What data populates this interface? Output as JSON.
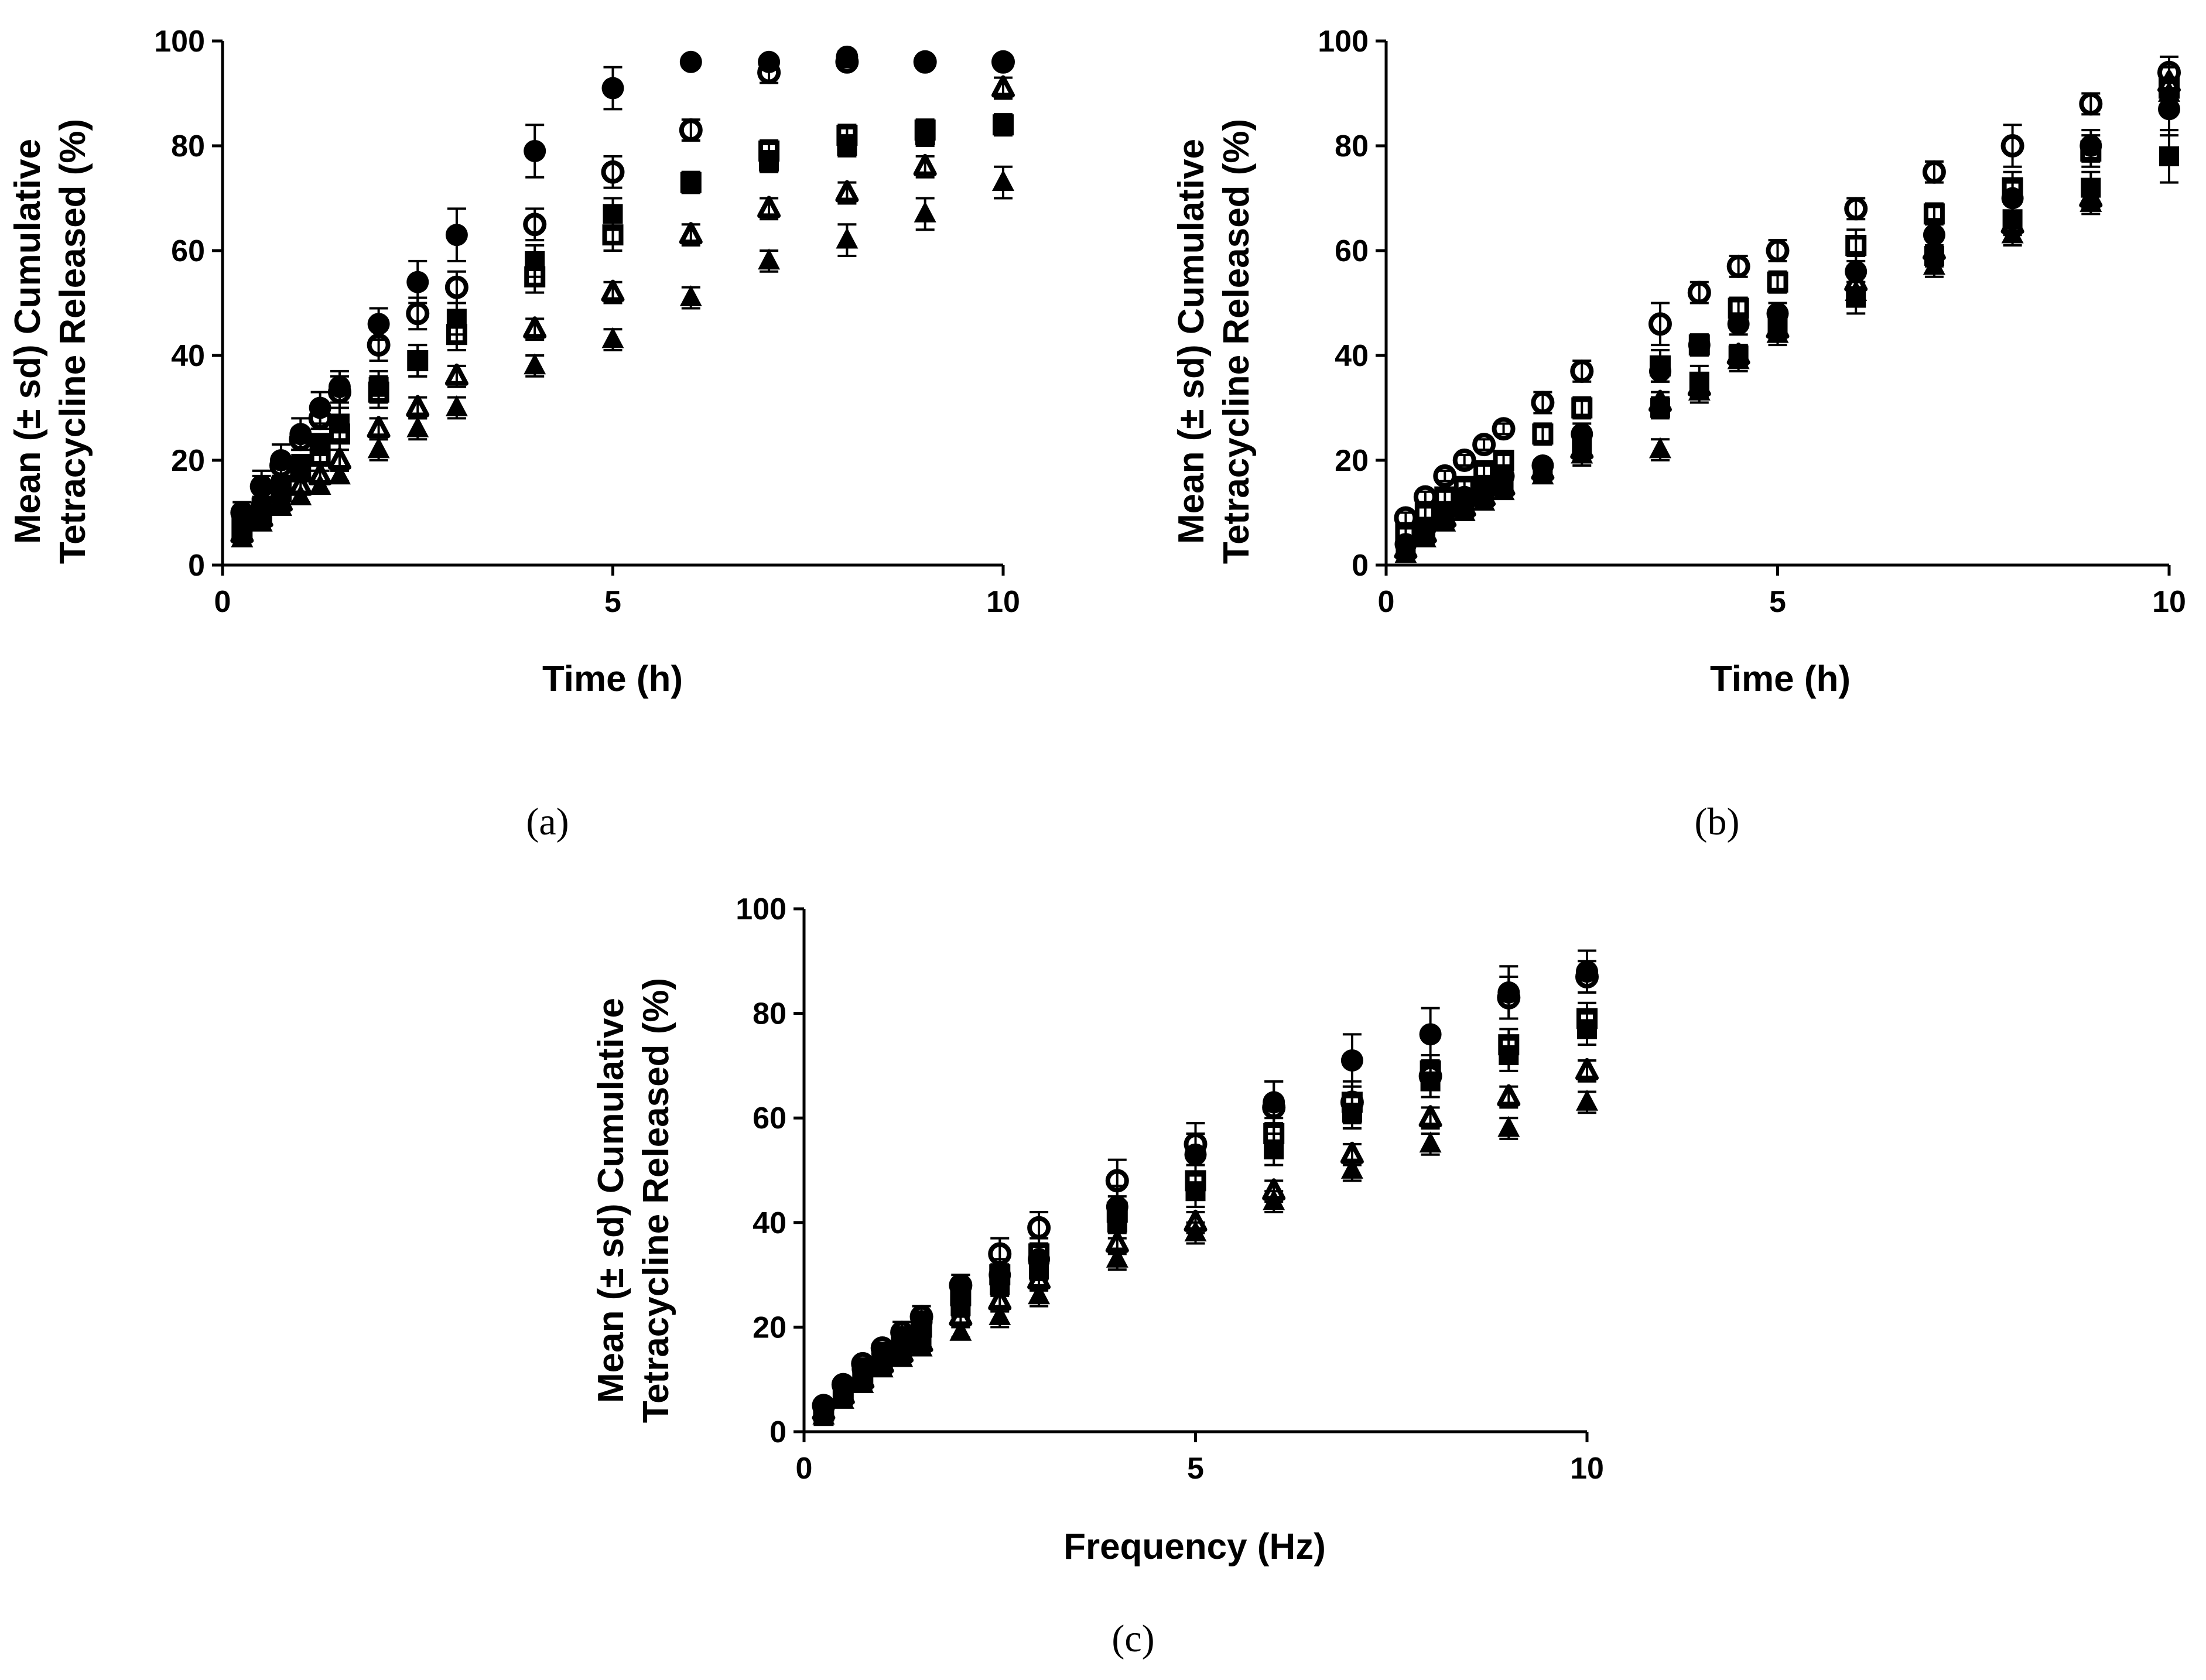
{
  "chart_data": [
    {
      "id": "a",
      "type": "scatter",
      "panel_label": "(a)",
      "xlabel": "Time (h)",
      "ylabel_line1": "Mean (± sd) Cumulative",
      "ylabel_line2": "Tetracycline Released (%)",
      "xlim": [
        0,
        10
      ],
      "ylim": [
        0,
        100
      ],
      "xticks": [
        "0",
        "5",
        "10"
      ],
      "yticks": [
        "0",
        "20",
        "40",
        "60",
        "80",
        "100"
      ],
      "x": [
        0.25,
        0.5,
        0.75,
        1,
        1.25,
        1.5,
        2,
        2.5,
        3,
        4,
        5,
        6,
        7,
        8,
        9,
        10
      ],
      "series": [
        {
          "name": "filled circle",
          "marker": "circle-filled",
          "values": [
            10,
            15,
            20,
            25,
            30,
            34,
            46,
            54,
            63,
            79,
            91,
            96,
            96,
            97,
            96,
            96
          ],
          "sd": [
            2,
            3,
            3,
            3,
            3,
            3,
            3,
            4,
            5,
            5,
            4,
            1,
            1,
            1,
            1,
            1
          ]
        },
        {
          "name": "open circle",
          "marker": "circle-open",
          "values": [
            10,
            15,
            19,
            24,
            28,
            33,
            42,
            48,
            53,
            65,
            75,
            83,
            94,
            96,
            96,
            96
          ],
          "sd": [
            2,
            2,
            2,
            2,
            2,
            3,
            3,
            3,
            3,
            3,
            3,
            2,
            2,
            1,
            1,
            1
          ]
        },
        {
          "name": "filled square",
          "marker": "square-filled",
          "values": [
            8,
            11,
            15,
            19,
            23,
            27,
            34,
            39,
            47,
            58,
            67,
            73,
            77,
            80,
            82,
            84
          ],
          "sd": [
            2,
            2,
            2,
            2,
            2,
            3,
            3,
            3,
            3,
            3,
            3,
            2,
            2,
            2,
            2,
            2
          ]
        },
        {
          "name": "open square",
          "marker": "square-open",
          "values": [
            7,
            10,
            14,
            18,
            21,
            25,
            33,
            39,
            44,
            55,
            63,
            73,
            79,
            82,
            83,
            84
          ],
          "sd": [
            2,
            2,
            2,
            2,
            2,
            3,
            3,
            3,
            3,
            3,
            3,
            2,
            2,
            2,
            2,
            2
          ]
        },
        {
          "name": "open triangle",
          "marker": "triangle-open",
          "values": [
            6,
            9,
            12,
            15,
            17,
            20,
            26,
            30,
            36,
            45,
            52,
            63,
            68,
            71,
            76,
            91
          ],
          "sd": [
            1,
            1,
            1,
            1,
            1,
            2,
            2,
            2,
            2,
            2,
            2,
            2,
            2,
            2,
            2,
            2
          ]
        },
        {
          "name": "filled triangle",
          "marker": "triangle-filled",
          "values": [
            5,
            8,
            11,
            13,
            15,
            17,
            22,
            26,
            30,
            38,
            43,
            51,
            58,
            62,
            67,
            73
          ],
          "sd": [
            1,
            1,
            1,
            1,
            1,
            1,
            2,
            2,
            2,
            2,
            2,
            2,
            2,
            3,
            3,
            3
          ]
        }
      ]
    },
    {
      "id": "b",
      "type": "scatter",
      "panel_label": "(b)",
      "xlabel": "Time (h)",
      "ylabel_line1": "Mean (± sd) Cumulative",
      "ylabel_line2": "Tetracycline Released (%)",
      "xlim": [
        0,
        10
      ],
      "ylim": [
        0,
        100
      ],
      "xticks": [
        "0",
        "5",
        "10"
      ],
      "yticks": [
        "0",
        "20",
        "40",
        "60",
        "80",
        "100"
      ],
      "x": [
        0.25,
        0.5,
        0.75,
        1,
        1.25,
        1.5,
        2,
        2.5,
        3.5,
        4,
        4.5,
        5,
        6,
        7,
        8,
        9,
        10
      ],
      "series": [
        {
          "name": "open circle",
          "marker": "circle-open",
          "values": [
            9,
            13,
            17,
            20,
            23,
            26,
            31,
            37,
            46,
            52,
            57,
            60,
            68,
            75,
            80,
            88,
            94
          ],
          "sd": [
            1,
            1,
            1,
            1,
            1,
            1,
            2,
            2,
            4,
            2,
            2,
            2,
            2,
            2,
            4,
            2,
            3
          ]
        },
        {
          "name": "open square",
          "marker": "square-open",
          "values": [
            6,
            10,
            13,
            15,
            18,
            20,
            25,
            30,
            38,
            42,
            49,
            54,
            61,
            67,
            72,
            79,
            91
          ],
          "sd": [
            1,
            1,
            1,
            1,
            1,
            1,
            2,
            2,
            3,
            2,
            2,
            2,
            3,
            2,
            3,
            3,
            4
          ]
        },
        {
          "name": "filled circle",
          "marker": "circle-filled",
          "values": [
            4,
            7,
            10,
            13,
            15,
            17,
            19,
            25,
            37,
            42,
            46,
            48,
            56,
            63,
            70,
            80,
            87
          ],
          "sd": [
            1,
            1,
            1,
            1,
            1,
            1,
            1,
            2,
            2,
            2,
            2,
            2,
            3,
            3,
            3,
            3,
            5
          ]
        },
        {
          "name": "filled square",
          "marker": "square-filled",
          "values": [
            3,
            6,
            9,
            11,
            13,
            15,
            18,
            23,
            30,
            35,
            40,
            46,
            51,
            59,
            66,
            72,
            78
          ],
          "sd": [
            1,
            1,
            1,
            1,
            1,
            1,
            1,
            2,
            2,
            3,
            2,
            2,
            3,
            2,
            3,
            3,
            5
          ]
        },
        {
          "name": "open triangle",
          "marker": "triangle-open",
          "values": [
            3,
            6,
            9,
            11,
            13,
            15,
            18,
            22,
            31,
            34,
            40,
            45,
            54,
            60,
            65,
            70,
            92
          ],
          "sd": [
            1,
            1,
            1,
            1,
            1,
            1,
            1,
            2,
            2,
            2,
            2,
            2,
            2,
            2,
            2,
            2,
            3
          ]
        },
        {
          "name": "filled triangle",
          "marker": "triangle-filled",
          "values": [
            2,
            5,
            8,
            10,
            12,
            14,
            17,
            21,
            22,
            33,
            39,
            44,
            52,
            57,
            63,
            69,
            90
          ],
          "sd": [
            1,
            1,
            1,
            1,
            1,
            1,
            1,
            2,
            2,
            2,
            2,
            2,
            2,
            2,
            2,
            2,
            3
          ]
        }
      ]
    },
    {
      "id": "c",
      "type": "scatter",
      "panel_label": "(c)",
      "xlabel": "Frequency (Hz)",
      "ylabel_line1": "Mean (± sd) Cumulative",
      "ylabel_line2": "Tetracycline Released (%)",
      "xlim": [
        0,
        10
      ],
      "ylim": [
        0,
        100
      ],
      "xticks": [
        "0",
        "5",
        "10"
      ],
      "yticks": [
        "0",
        "20",
        "40",
        "60",
        "80",
        "100"
      ],
      "x": [
        0.25,
        0.5,
        0.75,
        1,
        1.25,
        1.5,
        2,
        2.5,
        3,
        4,
        5,
        6,
        7,
        8,
        9,
        10
      ],
      "series": [
        {
          "name": "filled circle",
          "marker": "circle-filled",
          "values": [
            5,
            9,
            12,
            15,
            18,
            21,
            28,
            30,
            33,
            43,
            53,
            63,
            71,
            76,
            84,
            88
          ],
          "sd": [
            1,
            1,
            1,
            1,
            2,
            2,
            2,
            3,
            3,
            4,
            4,
            4,
            5,
            5,
            5,
            4
          ]
        },
        {
          "name": "open circle",
          "marker": "circle-open",
          "values": [
            5,
            9,
            13,
            16,
            19,
            22,
            28,
            34,
            39,
            48,
            55,
            62,
            63,
            68,
            83,
            87
          ],
          "sd": [
            1,
            1,
            1,
            1,
            2,
            2,
            2,
            3,
            3,
            4,
            4,
            5,
            4,
            4,
            4,
            3
          ]
        },
        {
          "name": "open square",
          "marker": "square-open",
          "values": [
            4,
            8,
            11,
            14,
            17,
            20,
            26,
            30,
            34,
            42,
            48,
            57,
            63,
            69,
            74,
            79
          ],
          "sd": [
            1,
            1,
            1,
            1,
            1,
            2,
            2,
            2,
            3,
            3,
            3,
            3,
            3,
            3,
            3,
            3
          ]
        },
        {
          "name": "filled square",
          "marker": "square-filled",
          "values": [
            3,
            7,
            10,
            13,
            15,
            18,
            24,
            28,
            31,
            40,
            46,
            54,
            61,
            67,
            72,
            77
          ],
          "sd": [
            1,
            1,
            1,
            1,
            1,
            2,
            2,
            2,
            2,
            3,
            3,
            3,
            3,
            3,
            3,
            3
          ]
        },
        {
          "name": "open triangle",
          "marker": "triangle-open",
          "values": [
            4,
            7,
            10,
            13,
            15,
            17,
            22,
            25,
            29,
            36,
            40,
            46,
            53,
            60,
            64,
            69
          ],
          "sd": [
            1,
            1,
            1,
            1,
            1,
            1,
            2,
            2,
            2,
            2,
            2,
            2,
            2,
            2,
            2,
            2
          ]
        },
        {
          "name": "filled triangle",
          "marker": "triangle-filled",
          "values": [
            3,
            6,
            9,
            12,
            14,
            16,
            19,
            22,
            26,
            33,
            38,
            44,
            50,
            55,
            58,
            63
          ],
          "sd": [
            1,
            1,
            1,
            1,
            1,
            1,
            1,
            2,
            2,
            2,
            2,
            2,
            2,
            2,
            2,
            2
          ]
        }
      ]
    }
  ]
}
